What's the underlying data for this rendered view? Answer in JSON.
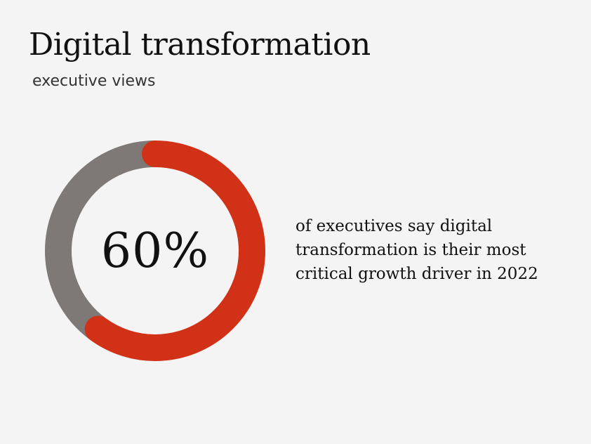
{
  "header": {
    "title": "Digital transformation",
    "subtitle": "executive views"
  },
  "chart_data": {
    "type": "pie",
    "subtype": "donut",
    "center_label": "60%",
    "slices": [
      {
        "name": "say digital transformation is most critical growth driver",
        "value": 60,
        "color": "#d13217"
      },
      {
        "name": "other",
        "value": 40,
        "color": "#7e7876"
      }
    ],
    "start": "top",
    "direction": "clockwise"
  },
  "caption": {
    "lines": [
      "of executives say digital",
      "transformation is their most",
      "critical growth driver in 2022"
    ]
  }
}
